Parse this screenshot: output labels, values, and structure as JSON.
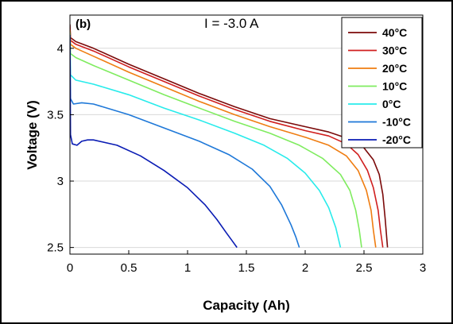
{
  "chart_data": {
    "type": "line",
    "panel_label": "(b)",
    "annotation": "I = -3.0 A",
    "xlabel": "Capacity (Ah)",
    "ylabel": "Voltage (V)",
    "xlim": [
      0,
      3
    ],
    "ylim": [
      2.45,
      4.25
    ],
    "xticks": [
      0,
      0.5,
      1,
      1.5,
      2,
      2.5,
      3
    ],
    "yticks": [
      2.5,
      3,
      3.5,
      4
    ],
    "xtick_labels": [
      "0",
      "0.5",
      "1",
      "1.5",
      "2",
      "2.5",
      "3"
    ],
    "ytick_labels": [
      "2.5",
      "3",
      "3.5",
      "4"
    ],
    "grid": "horizontal",
    "legend_position": "top-right",
    "series": [
      {
        "name": "40°C",
        "color": "#7b0a0a",
        "points": [
          [
            0,
            4.18
          ],
          [
            0.005,
            4.08
          ],
          [
            0.05,
            4.05
          ],
          [
            0.2,
            4.0
          ],
          [
            0.5,
            3.88
          ],
          [
            0.8,
            3.77
          ],
          [
            1.1,
            3.66
          ],
          [
            1.4,
            3.56
          ],
          [
            1.7,
            3.47
          ],
          [
            2.0,
            3.41
          ],
          [
            2.2,
            3.37
          ],
          [
            2.4,
            3.31
          ],
          [
            2.5,
            3.25
          ],
          [
            2.58,
            3.16
          ],
          [
            2.63,
            3.05
          ],
          [
            2.66,
            2.9
          ],
          [
            2.68,
            2.72
          ],
          [
            2.7,
            2.5
          ]
        ]
      },
      {
        "name": "30°C",
        "color": "#d01f1f",
        "points": [
          [
            0,
            4.16
          ],
          [
            0.005,
            4.06
          ],
          [
            0.05,
            4.03
          ],
          [
            0.2,
            3.98
          ],
          [
            0.5,
            3.86
          ],
          [
            0.8,
            3.75
          ],
          [
            1.1,
            3.64
          ],
          [
            1.4,
            3.54
          ],
          [
            1.7,
            3.45
          ],
          [
            2.0,
            3.38
          ],
          [
            2.2,
            3.34
          ],
          [
            2.35,
            3.28
          ],
          [
            2.45,
            3.2
          ],
          [
            2.53,
            3.08
          ],
          [
            2.58,
            2.95
          ],
          [
            2.62,
            2.78
          ],
          [
            2.64,
            2.63
          ],
          [
            2.66,
            2.5
          ]
        ]
      },
      {
        "name": "20°C",
        "color": "#ef7d11",
        "points": [
          [
            0,
            4.14
          ],
          [
            0.005,
            4.03
          ],
          [
            0.05,
            4.0
          ],
          [
            0.2,
            3.94
          ],
          [
            0.5,
            3.82
          ],
          [
            0.8,
            3.71
          ],
          [
            1.1,
            3.6
          ],
          [
            1.4,
            3.5
          ],
          [
            1.7,
            3.41
          ],
          [
            2.0,
            3.33
          ],
          [
            2.2,
            3.27
          ],
          [
            2.35,
            3.19
          ],
          [
            2.45,
            3.08
          ],
          [
            2.52,
            2.93
          ],
          [
            2.56,
            2.78
          ],
          [
            2.58,
            2.63
          ],
          [
            2.6,
            2.5
          ]
        ]
      },
      {
        "name": "10°C",
        "color": "#7fec5f",
        "points": [
          [
            0,
            4.12
          ],
          [
            0.005,
            3.96
          ],
          [
            0.05,
            3.93
          ],
          [
            0.2,
            3.87
          ],
          [
            0.5,
            3.76
          ],
          [
            0.8,
            3.65
          ],
          [
            1.1,
            3.55
          ],
          [
            1.4,
            3.45
          ],
          [
            1.7,
            3.36
          ],
          [
            1.95,
            3.27
          ],
          [
            2.15,
            3.17
          ],
          [
            2.3,
            3.05
          ],
          [
            2.38,
            2.93
          ],
          [
            2.43,
            2.78
          ],
          [
            2.46,
            2.63
          ],
          [
            2.48,
            2.5
          ]
        ]
      },
      {
        "name": "0°C",
        "color": "#28ebeb",
        "points": [
          [
            0,
            4.1
          ],
          [
            0.005,
            3.8
          ],
          [
            0.05,
            3.76
          ],
          [
            0.2,
            3.73
          ],
          [
            0.5,
            3.65
          ],
          [
            0.8,
            3.55
          ],
          [
            1.1,
            3.46
          ],
          [
            1.4,
            3.36
          ],
          [
            1.65,
            3.27
          ],
          [
            1.85,
            3.17
          ],
          [
            2.0,
            3.06
          ],
          [
            2.12,
            2.93
          ],
          [
            2.2,
            2.8
          ],
          [
            2.26,
            2.65
          ],
          [
            2.3,
            2.5
          ]
        ]
      },
      {
        "name": "-10°C",
        "color": "#1e78d8",
        "points": [
          [
            0,
            4.08
          ],
          [
            0.005,
            3.62
          ],
          [
            0.03,
            3.58
          ],
          [
            0.1,
            3.59
          ],
          [
            0.2,
            3.58
          ],
          [
            0.5,
            3.5
          ],
          [
            0.8,
            3.4
          ],
          [
            1.1,
            3.3
          ],
          [
            1.35,
            3.2
          ],
          [
            1.55,
            3.09
          ],
          [
            1.7,
            2.96
          ],
          [
            1.8,
            2.82
          ],
          [
            1.88,
            2.67
          ],
          [
            1.92,
            2.58
          ],
          [
            1.95,
            2.5
          ]
        ]
      },
      {
        "name": "-20°C",
        "color": "#0a1cb4",
        "points": [
          [
            0,
            4.1
          ],
          [
            0.005,
            3.35
          ],
          [
            0.02,
            3.28
          ],
          [
            0.06,
            3.27
          ],
          [
            0.1,
            3.3
          ],
          [
            0.15,
            3.31
          ],
          [
            0.2,
            3.31
          ],
          [
            0.4,
            3.27
          ],
          [
            0.6,
            3.19
          ],
          [
            0.8,
            3.08
          ],
          [
            1.0,
            2.95
          ],
          [
            1.15,
            2.82
          ],
          [
            1.25,
            2.71
          ],
          [
            1.33,
            2.61
          ],
          [
            1.38,
            2.55
          ],
          [
            1.42,
            2.5
          ]
        ]
      }
    ]
  }
}
